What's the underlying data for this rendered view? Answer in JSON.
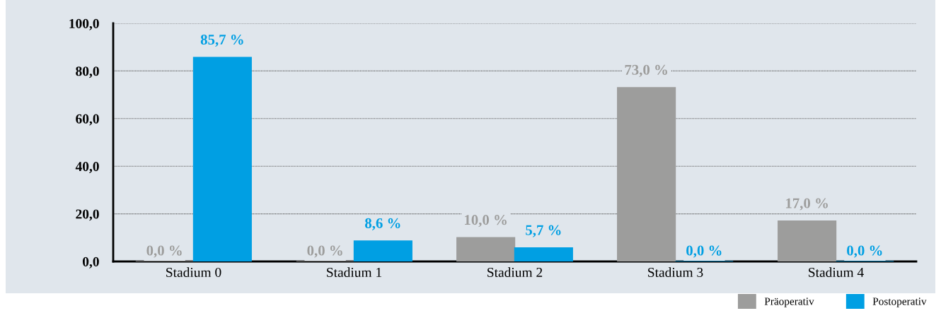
{
  "chart_data": {
    "type": "bar",
    "categories": [
      "Stadium 0",
      "Stadium 1",
      "Stadium 2",
      "Stadium 3",
      "Stadium 4"
    ],
    "series": [
      {
        "name": "Präoperativ",
        "color": "#9d9d9c",
        "values": [
          0.0,
          0.0,
          10.0,
          73.0,
          17.0
        ],
        "value_labels": [
          "0,0 %",
          "0,0 %",
          "10,0 %",
          "73,0 %",
          "17,0 %"
        ]
      },
      {
        "name": "Postoperativ",
        "color": "#009fe3",
        "values": [
          85.7,
          8.6,
          5.7,
          0.0,
          0.0
        ],
        "value_labels": [
          "85,7 %",
          "8,6 %",
          "5,7 %",
          "0,0 %",
          "0,0 %"
        ]
      }
    ],
    "ylim": [
      0,
      100
    ],
    "yticks": [
      {
        "value": 0,
        "label": "0,0"
      },
      {
        "value": 20,
        "label": "20,0"
      },
      {
        "value": 40,
        "label": "40,0"
      },
      {
        "value": 60,
        "label": "60,0"
      },
      {
        "value": 80,
        "label": "80,0"
      },
      {
        "value": 100,
        "label": "100,0"
      }
    ],
    "grid": "y",
    "legend": "bottom right"
  }
}
